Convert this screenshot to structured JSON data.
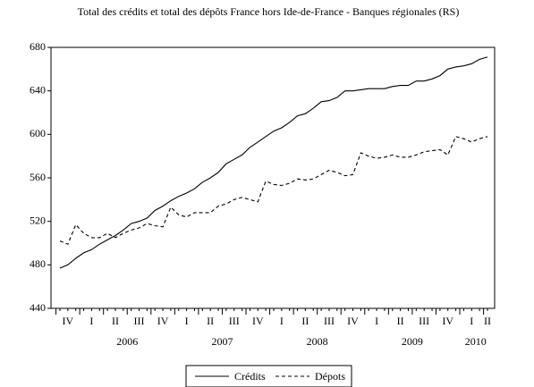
{
  "chart_data": {
    "type": "line",
    "title": "Total des crédits et total des dépôts France hors Ide-de-France - Banques régionales (RS)",
    "categories": [
      null,
      "IV",
      null,
      null,
      "I",
      null,
      null,
      "II",
      null,
      null,
      "III",
      null,
      null,
      "IV",
      null,
      null,
      "I",
      null,
      null,
      "II",
      null,
      null,
      "III",
      null,
      null,
      "IV",
      null,
      null,
      "I",
      null,
      null,
      "II",
      null,
      null,
      "III",
      null,
      null,
      "IV",
      null,
      null,
      "I",
      null,
      null,
      "II",
      null,
      null,
      "III",
      null,
      null,
      "IV",
      null,
      null,
      "I",
      null,
      "II"
    ],
    "year_categories": [
      null,
      null,
      null,
      null,
      null,
      null,
      null,
      null,
      "2006",
      null,
      null,
      null,
      null,
      null,
      null,
      null,
      null,
      null,
      null,
      null,
      "2007",
      null,
      null,
      null,
      null,
      null,
      null,
      null,
      null,
      null,
      null,
      null,
      "2008",
      null,
      null,
      null,
      null,
      null,
      null,
      null,
      null,
      null,
      null,
      null,
      "2009",
      null,
      null,
      null,
      null,
      null,
      null,
      null,
      "2010",
      null,
      null
    ],
    "series": [
      {
        "name": "Crédits",
        "color": "#000000",
        "dash": "solid",
        "values": [
          477,
          480,
          486,
          491,
          494,
          499,
          503,
          507,
          512,
          518,
          520,
          523,
          530,
          534,
          539,
          543,
          546,
          550,
          556,
          560,
          565,
          573,
          577,
          581,
          588,
          593,
          598,
          603,
          606,
          611,
          617,
          619,
          624,
          630,
          631,
          634,
          640,
          640,
          641,
          642,
          642,
          642,
          644,
          645,
          645,
          649,
          649,
          651,
          654,
          660,
          662,
          663,
          665,
          669,
          671
        ]
      },
      {
        "name": "Dépots",
        "color": "#000000",
        "dash": "dashed",
        "values": [
          502,
          499,
          517,
          509,
          505,
          505,
          509,
          505,
          509,
          512,
          514,
          518,
          516,
          515,
          533,
          526,
          524,
          528,
          528,
          528,
          534,
          536,
          540,
          542,
          540,
          538,
          557,
          554,
          553,
          555,
          559,
          558,
          559,
          563,
          567,
          565,
          562,
          563,
          583,
          580,
          578,
          579,
          581,
          579,
          579,
          581,
          584,
          585,
          586,
          581,
          598,
          596,
          593,
          596,
          598
        ]
      }
    ],
    "ylim": [
      440,
      680
    ],
    "yticks": [
      440,
      480,
      520,
      560,
      600,
      640,
      680
    ],
    "grid": false,
    "legend": "bottom"
  }
}
